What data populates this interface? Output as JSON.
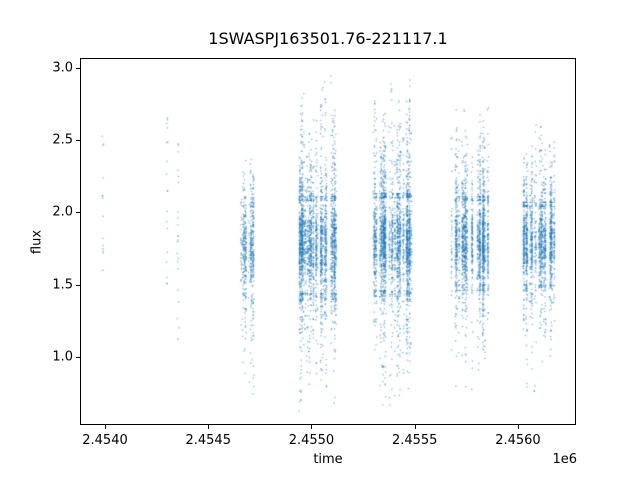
{
  "chart_data": {
    "type": "scatter",
    "title": "1SWASPJ163501.76-221117.1",
    "xlabel": "time",
    "ylabel": "flux",
    "x_offset_text": "1e6",
    "x_tick_labels": [
      "2.4540",
      "2.4545",
      "2.4550",
      "2.4555",
      "2.4560"
    ],
    "x_tick_values": [
      2.454,
      2.4545,
      2.455,
      2.4555,
      2.456
    ],
    "y_tick_labels": [
      "1.0",
      "1.5",
      "2.0",
      "2.5",
      "3.0"
    ],
    "y_tick_values": [
      1.0,
      1.5,
      2.0,
      2.5,
      3.0
    ],
    "xlim": [
      2.4538789,
      2.4562811
    ],
    "ylim": [
      0.529,
      3.069
    ],
    "x_scale_note": "times are in units of 1e6 (BJD ~2454000-2456200)",
    "grid": false,
    "legend": null,
    "point_color": "#1f77b4",
    "point_alpha": 0.55,
    "marker_size_px": 1.3,
    "seed": 7,
    "clusters": [
      {
        "kind": "sparse",
        "t": 2.4539903,
        "hw": 3e-06,
        "n": 14,
        "fmin": 1.58,
        "fmax": 2.55
      },
      {
        "kind": "sparse",
        "t": 2.4543003,
        "hw": 3e-06,
        "n": 18,
        "fmin": 1.5,
        "fmax": 2.68
      },
      {
        "kind": "sparse",
        "t": 2.4543535,
        "hw": 3e-06,
        "n": 22,
        "fmin": 1.12,
        "fmax": 2.48
      },
      {
        "kind": "dense",
        "t": 2.454678,
        "hw": 4.4e-05,
        "n": 560,
        "nights": 12,
        "mu": 1.76,
        "sigma": 0.15,
        "core": [
          1.44,
          2.04
        ],
        "top": 2.5,
        "bottom": 0.62,
        "w_up": 0.1,
        "w_low": 0.12
      },
      {
        "kind": "dense",
        "t": 2.455022,
        "hw": 0.000102,
        "n": 2500,
        "nights": 30,
        "mu": 1.78,
        "sigma": 0.16,
        "core": [
          1.44,
          2.08
        ],
        "top": 2.96,
        "bottom": 0.58,
        "w_up": 0.16,
        "w_low": 0.11
      },
      {
        "kind": "dense",
        "t": 2.455385,
        "hw": 0.000102,
        "n": 2500,
        "nights": 30,
        "mu": 1.79,
        "sigma": 0.16,
        "core": [
          1.46,
          2.1
        ],
        "top": 2.94,
        "bottom": 0.6,
        "w_up": 0.16,
        "w_low": 0.11
      },
      {
        "kind": "dense",
        "t": 2.455763,
        "hw": 0.000106,
        "n": 1900,
        "nights": 28,
        "mu": 1.8,
        "sigma": 0.15,
        "core": [
          1.5,
          2.08
        ],
        "top": 2.84,
        "bottom": 0.7,
        "w_up": 0.15,
        "w_low": 0.1
      },
      {
        "kind": "dense",
        "t": 2.456099,
        "hw": 8.3e-05,
        "n": 1650,
        "nights": 22,
        "mu": 1.79,
        "sigma": 0.14,
        "core": [
          1.5,
          2.04
        ],
        "top": 2.65,
        "bottom": 0.68,
        "w_up": 0.14,
        "w_low": 0.1
      }
    ]
  }
}
